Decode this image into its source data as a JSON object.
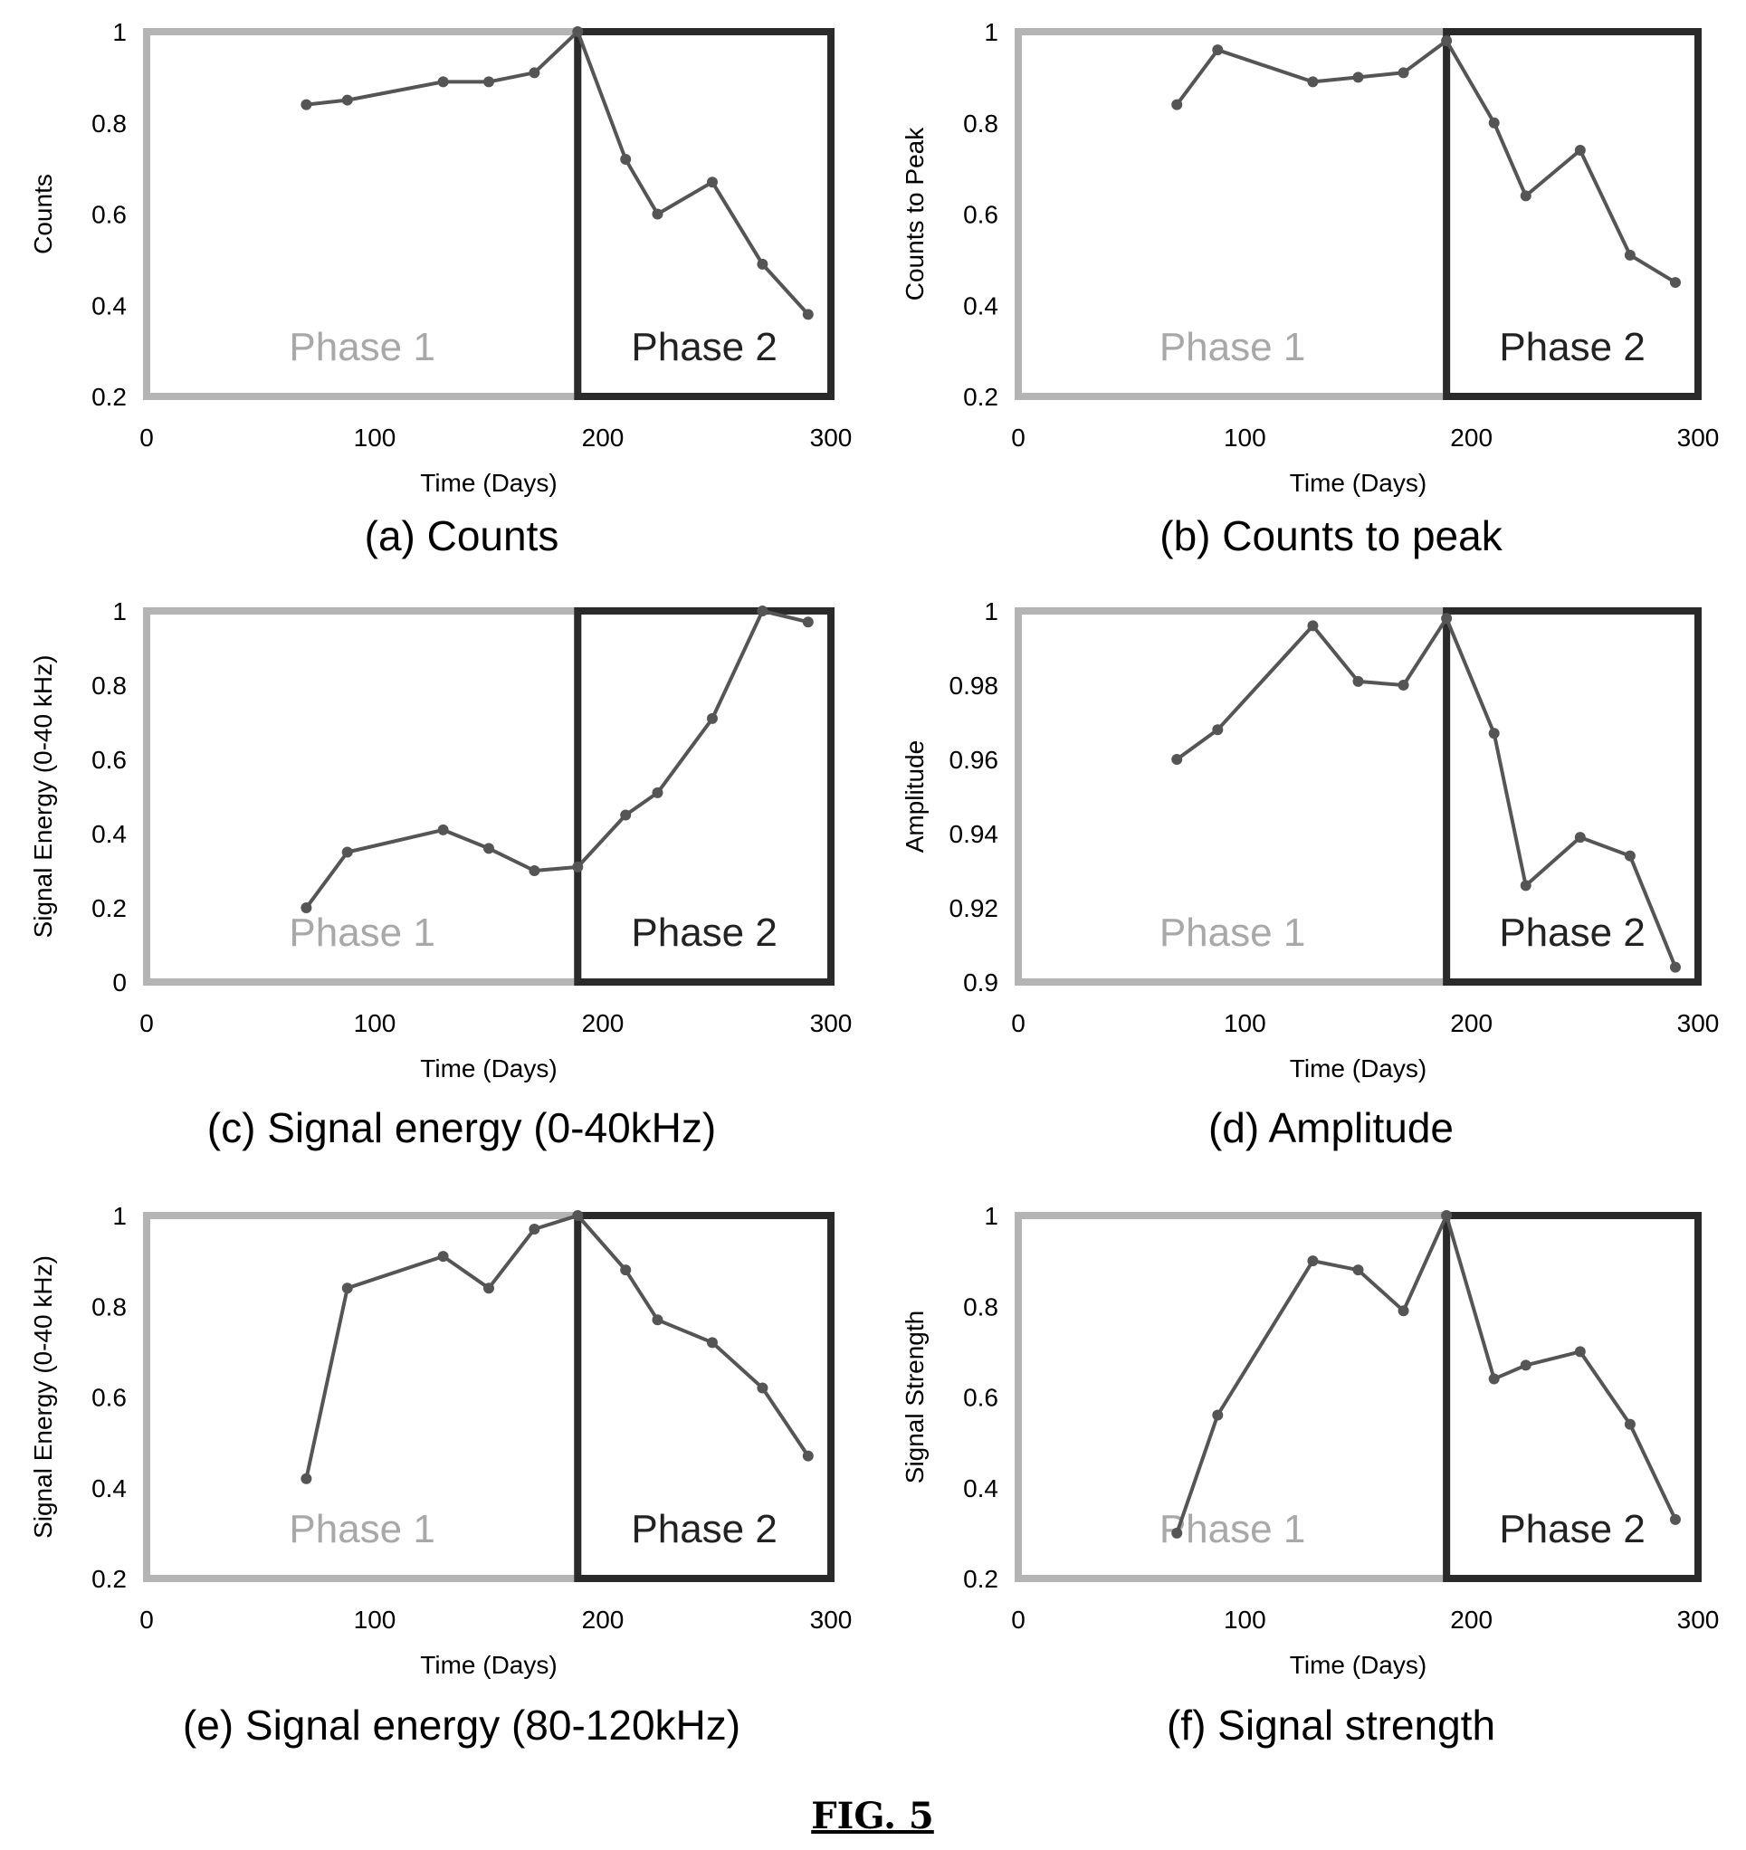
{
  "figure_label": "FIG. 5",
  "phase_labels": {
    "phase1": "Phase 1",
    "phase2": "Phase 2"
  },
  "colors": {
    "phase1_box": "#b4b4b4",
    "phase1_text": "#a8a8a8",
    "phase2_box": "#2a2a2a",
    "phase2_text": "#222222",
    "line": "#555555",
    "marker": "#555555"
  },
  "chart_data": [
    {
      "id": "a",
      "type": "line",
      "caption": "(a)  Counts",
      "xlabel": "Time (Days)",
      "ylabel": "Counts",
      "xlim": [
        0,
        300
      ],
      "ylim": [
        0.2,
        1.0
      ],
      "xticks": [
        0,
        100,
        200,
        300
      ],
      "xtick_labels": [
        "0",
        "100",
        "200",
        "300"
      ],
      "yticks": [
        0.2,
        0.4,
        0.6,
        0.8,
        1.0
      ],
      "ytick_labels": [
        "0.2",
        "0.4",
        "0.6",
        "0.8",
        "1"
      ],
      "phase_boundary": 189,
      "x": [
        70,
        88,
        130,
        150,
        170,
        189,
        210,
        224,
        248,
        270,
        290
      ],
      "y": [
        0.84,
        0.85,
        0.89,
        0.89,
        0.91,
        1.0,
        0.72,
        0.6,
        0.67,
        0.49,
        0.38
      ]
    },
    {
      "id": "b",
      "type": "line",
      "caption": "(b)  Counts to peak",
      "xlabel": "Time (Days)",
      "ylabel": "Counts to Peak",
      "xlim": [
        0,
        300
      ],
      "ylim": [
        0.2,
        1.0
      ],
      "xticks": [
        0,
        100,
        200,
        300
      ],
      "xtick_labels": [
        "0",
        "100",
        "200",
        "300"
      ],
      "yticks": [
        0.2,
        0.4,
        0.6,
        0.8,
        1.0
      ],
      "ytick_labels": [
        "0.2",
        "0.4",
        "0.6",
        "0.8",
        "1"
      ],
      "phase_boundary": 189,
      "x": [
        70,
        88,
        130,
        150,
        170,
        189,
        210,
        224,
        248,
        270,
        290
      ],
      "y": [
        0.84,
        0.96,
        0.89,
        0.9,
        0.91,
        0.98,
        0.8,
        0.64,
        0.74,
        0.51,
        0.45
      ]
    },
    {
      "id": "c",
      "type": "line",
      "caption": "(c)  Signal energy (0-40kHz)",
      "xlabel": "Time (Days)",
      "ylabel": "Signal Energy (0-40 kHz)",
      "xlim": [
        0,
        300
      ],
      "ylim": [
        0,
        1.0
      ],
      "xticks": [
        0,
        100,
        200,
        300
      ],
      "xtick_labels": [
        "0",
        "100",
        "200",
        "300"
      ],
      "yticks": [
        0,
        0.2,
        0.4,
        0.6,
        0.8,
        1.0
      ],
      "ytick_labels": [
        "0",
        "0.2",
        "0.4",
        "0.6",
        "0.8",
        "1"
      ],
      "phase_boundary": 189,
      "x": [
        70,
        88,
        130,
        150,
        170,
        189,
        210,
        224,
        248,
        270,
        290
      ],
      "y": [
        0.2,
        0.35,
        0.41,
        0.36,
        0.3,
        0.31,
        0.45,
        0.51,
        0.71,
        1.0,
        0.97
      ]
    },
    {
      "id": "d",
      "type": "line",
      "caption": "(d)  Amplitude",
      "xlabel": "Time (Days)",
      "ylabel": "Amplitude",
      "xlim": [
        0,
        300
      ],
      "ylim": [
        0.9,
        1.0
      ],
      "xticks": [
        0,
        100,
        200,
        300
      ],
      "xtick_labels": [
        "0",
        "100",
        "200",
        "300"
      ],
      "yticks": [
        0.9,
        0.92,
        0.94,
        0.96,
        0.98,
        1.0
      ],
      "ytick_labels": [
        "0.9",
        "0.92",
        "0.94",
        "0.96",
        "0.98",
        "1"
      ],
      "phase_boundary": 189,
      "x": [
        70,
        88,
        130,
        150,
        170,
        189,
        210,
        224,
        248,
        270,
        290
      ],
      "y": [
        0.96,
        0.968,
        0.996,
        0.981,
        0.98,
        0.998,
        0.967,
        0.926,
        0.939,
        0.934,
        0.904
      ]
    },
    {
      "id": "e",
      "type": "line",
      "caption": "(e)  Signal energy (80-120kHz)",
      "xlabel": "Time (Days)",
      "ylabel": "Signal Energy (0-40 kHz)",
      "xlim": [
        0,
        300
      ],
      "ylim": [
        0.2,
        1.0
      ],
      "xticks": [
        0,
        100,
        200,
        300
      ],
      "xtick_labels": [
        "0",
        "100",
        "200",
        "300"
      ],
      "yticks": [
        0.2,
        0.4,
        0.6,
        0.8,
        1.0
      ],
      "ytick_labels": [
        "0.2",
        "0.4",
        "0.6",
        "0.8",
        "1"
      ],
      "phase_boundary": 189,
      "x": [
        70,
        88,
        130,
        150,
        170,
        189,
        210,
        224,
        248,
        270,
        290
      ],
      "y": [
        0.42,
        0.84,
        0.91,
        0.84,
        0.97,
        1.0,
        0.88,
        0.77,
        0.72,
        0.62,
        0.47
      ]
    },
    {
      "id": "f",
      "type": "line",
      "caption": "(f)  Signal strength",
      "xlabel": "Time (Days)",
      "ylabel": "Signal Strength",
      "xlim": [
        0,
        300
      ],
      "ylim": [
        0.2,
        1.0
      ],
      "xticks": [
        0,
        100,
        200,
        300
      ],
      "xtick_labels": [
        "0",
        "100",
        "200",
        "300"
      ],
      "yticks": [
        0.2,
        0.4,
        0.6,
        0.8,
        1.0
      ],
      "ytick_labels": [
        "0.2",
        "0.4",
        "0.6",
        "0.8",
        "1"
      ],
      "phase_boundary": 189,
      "x": [
        70,
        88,
        130,
        150,
        170,
        189,
        210,
        224,
        248,
        270,
        290
      ],
      "y": [
        0.3,
        0.56,
        0.9,
        0.88,
        0.79,
        1.0,
        0.64,
        0.67,
        0.7,
        0.54,
        0.33
      ]
    }
  ]
}
